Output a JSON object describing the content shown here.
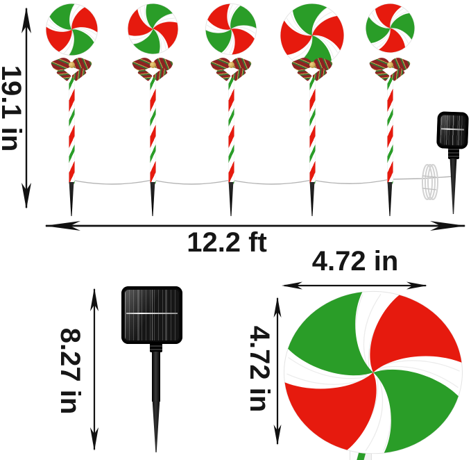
{
  "dimensions": {
    "stake_height_label": "19.1 in",
    "string_length_label": "12.2 ft",
    "solar_stake_height_label": "8.27 in",
    "candy_width_label": "4.72 in",
    "candy_height_label": "4.72 in"
  },
  "colors": {
    "candy_red": "#e61a0e",
    "candy_green": "#2a9d28",
    "candy_white": "#ffffff",
    "dimension_text": "#161616",
    "arrow_black": "#111111",
    "wire_gray": "#b3b3b3",
    "panel_black": "#0d0d0d",
    "bow_red": "#8e2222",
    "bow_green": "#3c6b34",
    "bow_gold": "#caa24e"
  },
  "lollipops": [
    {
      "rotation": 18
    },
    {
      "rotation": 64
    },
    {
      "rotation": 100
    },
    {
      "rotation": 40
    },
    {
      "rotation": 130
    }
  ],
  "detail_candy": {
    "rotation": 5
  }
}
